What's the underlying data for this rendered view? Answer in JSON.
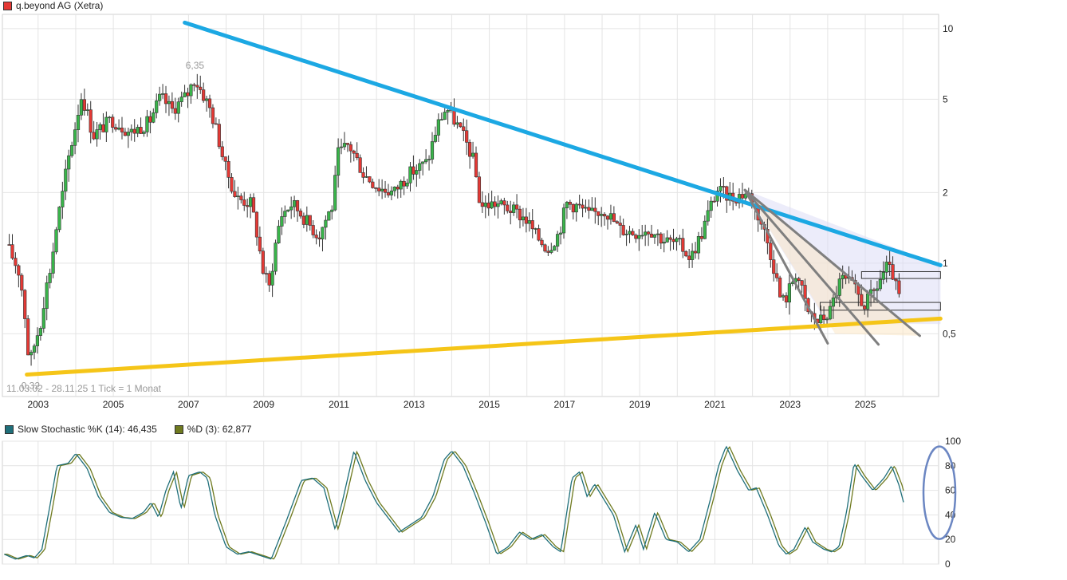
{
  "chart_data": [
    {
      "type": "candlestick",
      "title": "q.beyond AG (Xetra)",
      "y_scale": "log",
      "ylim": [
        0.27,
        11.5
      ],
      "y_ticks": [
        {
          "value": 10,
          "label": "10"
        },
        {
          "value": 5,
          "label": "5"
        },
        {
          "value": 2,
          "label": "2"
        },
        {
          "value": 1,
          "label": "1"
        },
        {
          "value": 0.5,
          "label": "0,5"
        }
      ],
      "x_ticks": [
        {
          "value": 2003,
          "label": "2003"
        },
        {
          "value": 2005,
          "label": "2005"
        },
        {
          "value": 2007,
          "label": "2007"
        },
        {
          "value": 2009,
          "label": "2009"
        },
        {
          "value": 2011,
          "label": "2011"
        },
        {
          "value": 2013,
          "label": "2013"
        },
        {
          "value": 2015,
          "label": "2015"
        },
        {
          "value": 2017,
          "label": "2017"
        },
        {
          "value": 2019,
          "label": "2019"
        },
        {
          "value": 2021,
          "label": "2021"
        },
        {
          "value": 2023,
          "label": "2023"
        },
        {
          "value": 2025,
          "label": "2025"
        }
      ],
      "xlim": [
        2002.05,
        2026.95
      ],
      "annotations": {
        "high": {
          "text": "6,35",
          "x": 2007.17,
          "y": 6.35
        },
        "low": {
          "text": "0,32",
          "x": 2002.8,
          "y": 0.32
        },
        "range_info": "11.03.02 - 28.11.25   1 Tick = 1 Monat"
      },
      "anchors": [
        [
          2002.2,
          1.2
        ],
        [
          2002.55,
          0.9
        ],
        [
          2002.8,
          0.36
        ],
        [
          2003.1,
          0.55
        ],
        [
          2003.4,
          1.0
        ],
        [
          2003.7,
          2.0
        ],
        [
          2004.0,
          3.6
        ],
        [
          2004.2,
          5.2
        ],
        [
          2004.5,
          3.5
        ],
        [
          2005.0,
          4.1
        ],
        [
          2005.5,
          3.6
        ],
        [
          2006.0,
          4.0
        ],
        [
          2006.3,
          5.1
        ],
        [
          2006.6,
          4.5
        ],
        [
          2007.0,
          5.2
        ],
        [
          2007.2,
          6.1
        ],
        [
          2007.6,
          4.6
        ],
        [
          2008.0,
          2.6
        ],
        [
          2008.3,
          1.9
        ],
        [
          2008.7,
          1.8
        ],
        [
          2009.0,
          0.95
        ],
        [
          2009.2,
          0.78
        ],
        [
          2009.5,
          1.6
        ],
        [
          2009.8,
          1.8
        ],
        [
          2010.2,
          1.5
        ],
        [
          2010.5,
          1.3
        ],
        [
          2010.9,
          1.8
        ],
        [
          2011.0,
          2.9
        ],
        [
          2011.3,
          3.2
        ],
        [
          2011.7,
          2.4
        ],
        [
          2012.1,
          2.1
        ],
        [
          2012.5,
          2.0
        ],
        [
          2012.9,
          2.4
        ],
        [
          2013.4,
          2.7
        ],
        [
          2013.7,
          4.0
        ],
        [
          2013.9,
          4.6
        ],
        [
          2014.3,
          3.6
        ],
        [
          2014.6,
          2.8
        ],
        [
          2014.8,
          1.75
        ],
        [
          2015.2,
          1.8
        ],
        [
          2015.6,
          1.7
        ],
        [
          2016.0,
          1.55
        ],
        [
          2016.3,
          1.3
        ],
        [
          2016.6,
          1.15
        ],
        [
          2016.9,
          1.35
        ],
        [
          2017.1,
          1.8
        ],
        [
          2017.4,
          1.75
        ],
        [
          2017.7,
          1.6
        ],
        [
          2018.1,
          1.7
        ],
        [
          2018.5,
          1.4
        ],
        [
          2018.9,
          1.35
        ],
        [
          2019.3,
          1.4
        ],
        [
          2019.7,
          1.25
        ],
        [
          2020.1,
          1.2
        ],
        [
          2020.4,
          1.05
        ],
        [
          2020.7,
          1.35
        ],
        [
          2020.9,
          1.7
        ],
        [
          2021.1,
          2.05
        ],
        [
          2021.5,
          1.9
        ],
        [
          2021.9,
          2.0
        ],
        [
          2022.3,
          1.45
        ],
        [
          2022.6,
          0.98
        ],
        [
          2022.8,
          0.68
        ],
        [
          2022.95,
          0.72
        ],
        [
          2023.2,
          0.92
        ],
        [
          2023.5,
          0.62
        ],
        [
          2023.8,
          0.56
        ],
        [
          2024.1,
          0.62
        ],
        [
          2024.4,
          0.86
        ],
        [
          2024.7,
          0.8
        ],
        [
          2025.0,
          0.66
        ],
        [
          2025.3,
          0.76
        ],
        [
          2025.6,
          0.96
        ],
        [
          2025.8,
          0.88
        ],
        [
          2025.9,
          0.72
        ]
      ],
      "trendlines": [
        {
          "name": "blue-resistance",
          "color": "#1ca8e3",
          "points": [
            [
              2006.9,
              10.6
            ],
            [
              2027.0,
              0.98
            ]
          ]
        },
        {
          "name": "yellow-support",
          "color": "#f5c518",
          "points": [
            [
              2002.7,
              0.335
            ],
            [
              2027.0,
              0.58
            ]
          ]
        },
        {
          "name": "gray-fan-1",
          "color": "#7f7f7f",
          "points": [
            [
              2021.8,
              2.05
            ],
            [
              2024.0,
              0.455
            ]
          ]
        },
        {
          "name": "gray-fan-2",
          "color": "#7f7f7f",
          "points": [
            [
              2021.8,
              2.05
            ],
            [
              2025.35,
              0.45
            ]
          ]
        },
        {
          "name": "gray-fan-3",
          "color": "#7f7f7f",
          "points": [
            [
              2021.8,
              2.05
            ],
            [
              2026.45,
              0.49
            ]
          ]
        }
      ],
      "channels": [
        {
          "name": "lavender-wedge",
          "color": "#dcdcf5",
          "points": [
            [
              2021.8,
              2.05
            ],
            [
              2027.0,
              0.98
            ],
            [
              2027.0,
              0.55
            ],
            [
              2024.0,
              0.55
            ]
          ]
        },
        {
          "name": "peach-wedge",
          "color": "#fbe7c6",
          "points": [
            [
              2021.8,
              2.05
            ],
            [
              2026.45,
              0.49
            ],
            [
              2024.2,
              0.5
            ]
          ]
        }
      ],
      "boxes": [
        {
          "x0": 2024.9,
          "x1": 2027.0,
          "y0": 0.86,
          "y1": 0.92
        },
        {
          "x0": 2023.8,
          "x1": 2027.0,
          "y0": 0.63,
          "y1": 0.68
        }
      ]
    },
    {
      "type": "line",
      "title": "Slow Stochastic",
      "series": [
        {
          "name": "Slow Stochastic %K (14): 46,435",
          "color": "#1f6f7a"
        },
        {
          "name": "%D (3): 62,877",
          "color": "#6f7a1f"
        }
      ],
      "ylim": [
        0,
        100
      ],
      "y_ticks": [
        100,
        80,
        60,
        40,
        20,
        0
      ],
      "xlim": [
        2002.05,
        2026.95
      ],
      "k_anchors": [
        [
          2002.1,
          8
        ],
        [
          2002.4,
          4
        ],
        [
          2002.7,
          7
        ],
        [
          2002.9,
          5
        ],
        [
          2003.1,
          12
        ],
        [
          2003.3,
          45
        ],
        [
          2003.5,
          80
        ],
        [
          2003.8,
          82
        ],
        [
          2004.0,
          90
        ],
        [
          2004.3,
          78
        ],
        [
          2004.6,
          55
        ],
        [
          2004.9,
          42
        ],
        [
          2005.2,
          38
        ],
        [
          2005.5,
          37
        ],
        [
          2005.8,
          42
        ],
        [
          2006.0,
          50
        ],
        [
          2006.2,
          38
        ],
        [
          2006.4,
          60
        ],
        [
          2006.6,
          75
        ],
        [
          2006.8,
          45
        ],
        [
          2007.0,
          72
        ],
        [
          2007.3,
          75
        ],
        [
          2007.5,
          70
        ],
        [
          2007.7,
          40
        ],
        [
          2008.0,
          14
        ],
        [
          2008.3,
          8
        ],
        [
          2008.6,
          10
        ],
        [
          2009.0,
          6
        ],
        [
          2009.2,
          4
        ],
        [
          2009.6,
          35
        ],
        [
          2010.0,
          68
        ],
        [
          2010.3,
          70
        ],
        [
          2010.6,
          62
        ],
        [
          2010.9,
          28
        ],
        [
          2011.1,
          52
        ],
        [
          2011.4,
          92
        ],
        [
          2011.7,
          68
        ],
        [
          2012.0,
          50
        ],
        [
          2012.3,
          38
        ],
        [
          2012.6,
          26
        ],
        [
          2012.9,
          32
        ],
        [
          2013.2,
          38
        ],
        [
          2013.5,
          55
        ],
        [
          2013.8,
          85
        ],
        [
          2014.0,
          92
        ],
        [
          2014.3,
          80
        ],
        [
          2014.6,
          58
        ],
        [
          2014.9,
          34
        ],
        [
          2015.2,
          8
        ],
        [
          2015.5,
          14
        ],
        [
          2015.8,
          26
        ],
        [
          2016.1,
          20
        ],
        [
          2016.4,
          24
        ],
        [
          2016.7,
          14
        ],
        [
          2016.9,
          10
        ],
        [
          2017.2,
          70
        ],
        [
          2017.4,
          75
        ],
        [
          2017.6,
          55
        ],
        [
          2017.8,
          65
        ],
        [
          2018.0,
          55
        ],
        [
          2018.3,
          40
        ],
        [
          2018.6,
          10
        ],
        [
          2018.9,
          32
        ],
        [
          2019.1,
          12
        ],
        [
          2019.4,
          42
        ],
        [
          2019.7,
          20
        ],
        [
          2020.0,
          18
        ],
        [
          2020.3,
          10
        ],
        [
          2020.6,
          20
        ],
        [
          2020.9,
          55
        ],
        [
          2021.1,
          80
        ],
        [
          2021.3,
          96
        ],
        [
          2021.6,
          76
        ],
        [
          2021.9,
          60
        ],
        [
          2022.1,
          62
        ],
        [
          2022.4,
          40
        ],
        [
          2022.7,
          15
        ],
        [
          2022.9,
          8
        ],
        [
          2023.1,
          12
        ],
        [
          2023.4,
          30
        ],
        [
          2023.6,
          18
        ],
        [
          2023.9,
          12
        ],
        [
          2024.1,
          10
        ],
        [
          2024.3,
          14
        ],
        [
          2024.5,
          42
        ],
        [
          2024.7,
          82
        ],
        [
          2024.9,
          72
        ],
        [
          2025.2,
          60
        ],
        [
          2025.5,
          70
        ],
        [
          2025.7,
          80
        ],
        [
          2025.9,
          64
        ],
        [
          2026.05,
          46.435
        ]
      ],
      "d_lag": 0.08
    }
  ]
}
